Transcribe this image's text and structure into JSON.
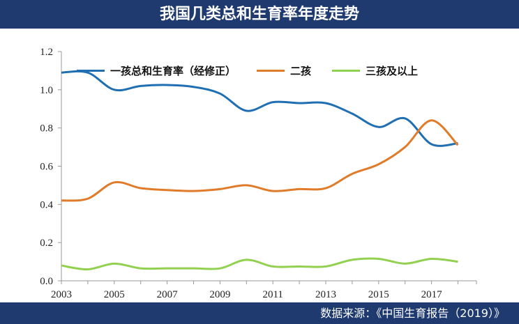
{
  "header": {
    "title": "我国几类总和生育率年度走势"
  },
  "footer": {
    "source": "数据来源：《中国生育报告（2019）》"
  },
  "chart_data": {
    "type": "line",
    "title": "我国几类总和生育率年度走势",
    "xlabel": "",
    "ylabel": "",
    "x": [
      2003,
      2004,
      2005,
      2006,
      2007,
      2008,
      2009,
      2010,
      2011,
      2012,
      2013,
      2014,
      2015,
      2016,
      2017,
      2018
    ],
    "x_ticks": [
      "2003",
      "2005",
      "2007",
      "2009",
      "2011",
      "2013",
      "2015",
      "2017"
    ],
    "y_ticks": [
      "0.0",
      "0.2",
      "0.4",
      "0.6",
      "0.8",
      "1.0",
      "1.2"
    ],
    "ylim": [
      0,
      1.2
    ],
    "xlim": [
      2003,
      2018.7
    ],
    "grid": false,
    "legend_position": "top",
    "series": [
      {
        "name": "一孩总和生育率（经修正）",
        "color": "#1f6fb2",
        "values": [
          1.09,
          1.09,
          1.0,
          1.02,
          1.025,
          1.015,
          0.98,
          0.89,
          0.935,
          0.93,
          0.93,
          0.875,
          0.805,
          0.85,
          0.715,
          0.72
        ]
      },
      {
        "name": "二孩",
        "color": "#e07b2a",
        "values": [
          0.42,
          0.43,
          0.515,
          0.485,
          0.475,
          0.47,
          0.48,
          0.5,
          0.47,
          0.48,
          0.485,
          0.56,
          0.61,
          0.7,
          0.84,
          0.71
        ]
      },
      {
        "name": "三孩及以上",
        "color": "#92d050",
        "values": [
          0.08,
          0.06,
          0.09,
          0.065,
          0.065,
          0.065,
          0.065,
          0.11,
          0.075,
          0.075,
          0.075,
          0.11,
          0.115,
          0.09,
          0.115,
          0.1
        ]
      }
    ]
  }
}
